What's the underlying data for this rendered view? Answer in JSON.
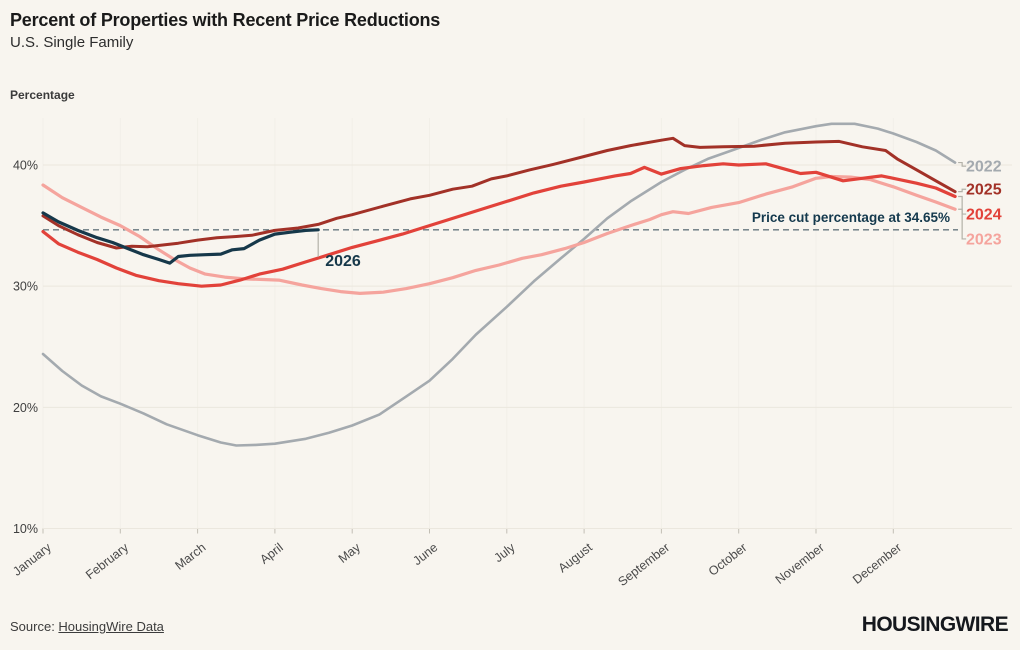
{
  "header": {
    "title": "Percent of Properties with Recent Price Reductions",
    "subtitle": "U.S. Single Family"
  },
  "axis_title": "Percentage",
  "source": {
    "prefix": "Source: ",
    "link_text": "HousingWire Data"
  },
  "logo_text": "HOUSINGWIRE",
  "chart_data": {
    "type": "line",
    "title": "Percent of Properties with Recent Price Reductions",
    "subtitle": "U.S. Single Family",
    "ylabel": "Percentage",
    "xlabel": "",
    "ylim": [
      10,
      44.5
    ],
    "grid": true,
    "legend_position": "right-edge-labels",
    "y_ticks": [
      10,
      20,
      30,
      40
    ],
    "y_tick_unit": "%",
    "x_axis": {
      "months": [
        "January",
        "February",
        "March",
        "April",
        "May",
        "June",
        "July",
        "August",
        "September",
        "October",
        "November",
        "December"
      ]
    },
    "annotation": {
      "text": "Price cut percentage at 34.65%",
      "value": 34.65,
      "color": "#14394d",
      "line_style": "dashed"
    },
    "inline_label": {
      "text": "2026",
      "x": 3.56,
      "value": 34.65
    },
    "colors": {
      "background": "#f8f5ef",
      "gridline": "#ebe7de",
      "gridline_vertical": "#f2efe8",
      "tick": "#c2beb4",
      "dashed_line": "#66777f",
      "connector": "#b3b1a8"
    },
    "series": [
      {
        "name": "2022",
        "color": "#a4aaaf",
        "width": 2.6,
        "label_value": 39.9,
        "points": [
          [
            0,
            24.4
          ],
          [
            0.25,
            23.0
          ],
          [
            0.5,
            21.8
          ],
          [
            0.75,
            20.9
          ],
          [
            1.0,
            20.3
          ],
          [
            1.3,
            19.5
          ],
          [
            1.6,
            18.6
          ],
          [
            2.0,
            17.7
          ],
          [
            2.3,
            17.1
          ],
          [
            2.5,
            16.85
          ],
          [
            2.75,
            16.9
          ],
          [
            3.0,
            17.0
          ],
          [
            3.4,
            17.4
          ],
          [
            3.7,
            17.9
          ],
          [
            4.0,
            18.5
          ],
          [
            4.35,
            19.4
          ],
          [
            4.7,
            20.9
          ],
          [
            5.0,
            22.2
          ],
          [
            5.3,
            24.0
          ],
          [
            5.6,
            26.0
          ],
          [
            6.0,
            28.3
          ],
          [
            6.35,
            30.4
          ],
          [
            6.7,
            32.3
          ],
          [
            7.0,
            33.9
          ],
          [
            7.3,
            35.6
          ],
          [
            7.6,
            37.0
          ],
          [
            8.0,
            38.6
          ],
          [
            8.3,
            39.6
          ],
          [
            8.6,
            40.5
          ],
          [
            9.0,
            41.4
          ],
          [
            9.3,
            42.1
          ],
          [
            9.6,
            42.7
          ],
          [
            10.0,
            43.2
          ],
          [
            10.2,
            43.4
          ],
          [
            10.5,
            43.4
          ],
          [
            10.8,
            43.0
          ],
          [
            11.0,
            42.6
          ],
          [
            11.3,
            41.9
          ],
          [
            11.55,
            41.2
          ],
          [
            11.8,
            40.2
          ]
        ]
      },
      {
        "name": "2023",
        "color": "#f5a49d",
        "width": 3.2,
        "label_value": 33.9,
        "points": [
          [
            0,
            38.35
          ],
          [
            0.25,
            37.3
          ],
          [
            0.5,
            36.5
          ],
          [
            0.75,
            35.7
          ],
          [
            1.0,
            35.0
          ],
          [
            1.25,
            34.1
          ],
          [
            1.5,
            33.0
          ],
          [
            1.7,
            32.2
          ],
          [
            1.9,
            31.5
          ],
          [
            2.1,
            31.0
          ],
          [
            2.35,
            30.75
          ],
          [
            2.6,
            30.6
          ],
          [
            2.85,
            30.55
          ],
          [
            3.05,
            30.5
          ],
          [
            3.35,
            30.1
          ],
          [
            3.6,
            29.8
          ],
          [
            3.85,
            29.55
          ],
          [
            4.1,
            29.4
          ],
          [
            4.4,
            29.5
          ],
          [
            4.7,
            29.8
          ],
          [
            5.0,
            30.2
          ],
          [
            5.3,
            30.7
          ],
          [
            5.6,
            31.3
          ],
          [
            5.9,
            31.75
          ],
          [
            6.2,
            32.3
          ],
          [
            6.45,
            32.6
          ],
          [
            6.75,
            33.1
          ],
          [
            7.0,
            33.6
          ],
          [
            7.3,
            34.35
          ],
          [
            7.6,
            35.0
          ],
          [
            7.85,
            35.5
          ],
          [
            8.0,
            35.9
          ],
          [
            8.15,
            36.15
          ],
          [
            8.35,
            36.0
          ],
          [
            8.65,
            36.5
          ],
          [
            9.0,
            36.9
          ],
          [
            9.35,
            37.6
          ],
          [
            9.7,
            38.2
          ],
          [
            10.0,
            38.9
          ],
          [
            10.2,
            39.05
          ],
          [
            10.45,
            39.0
          ],
          [
            10.7,
            38.8
          ],
          [
            11.0,
            38.2
          ],
          [
            11.3,
            37.5
          ],
          [
            11.55,
            36.95
          ],
          [
            11.8,
            36.35
          ]
        ]
      },
      {
        "name": "2024",
        "color": "#e2423a",
        "width": 3.2,
        "label_value": 35.95,
        "points": [
          [
            0,
            34.5
          ],
          [
            0.2,
            33.5
          ],
          [
            0.45,
            32.8
          ],
          [
            0.7,
            32.2
          ],
          [
            0.95,
            31.5
          ],
          [
            1.2,
            30.9
          ],
          [
            1.5,
            30.45
          ],
          [
            1.75,
            30.2
          ],
          [
            2.05,
            30.0
          ],
          [
            2.3,
            30.1
          ],
          [
            2.55,
            30.5
          ],
          [
            2.8,
            31.0
          ],
          [
            3.1,
            31.4
          ],
          [
            3.4,
            32.0
          ],
          [
            3.7,
            32.6
          ],
          [
            4.0,
            33.2
          ],
          [
            4.3,
            33.7
          ],
          [
            4.65,
            34.3
          ],
          [
            5.0,
            35.0
          ],
          [
            5.35,
            35.7
          ],
          [
            5.7,
            36.4
          ],
          [
            6.0,
            37.0
          ],
          [
            6.35,
            37.7
          ],
          [
            6.7,
            38.25
          ],
          [
            7.0,
            38.6
          ],
          [
            7.4,
            39.1
          ],
          [
            7.6,
            39.3
          ],
          [
            7.78,
            39.8
          ],
          [
            8.0,
            39.25
          ],
          [
            8.25,
            39.7
          ],
          [
            8.55,
            39.95
          ],
          [
            8.8,
            40.1
          ],
          [
            9.0,
            40.0
          ],
          [
            9.35,
            40.1
          ],
          [
            9.63,
            39.6
          ],
          [
            9.8,
            39.3
          ],
          [
            10.0,
            39.4
          ],
          [
            10.35,
            38.7
          ],
          [
            10.6,
            38.9
          ],
          [
            10.85,
            39.1
          ],
          [
            11.0,
            38.9
          ],
          [
            11.3,
            38.5
          ],
          [
            11.55,
            38.1
          ],
          [
            11.8,
            37.4
          ]
        ]
      },
      {
        "name": "2025",
        "color": "#a23127",
        "width": 3.0,
        "label_value": 38.0,
        "points": [
          [
            0,
            35.8
          ],
          [
            0.2,
            35.0
          ],
          [
            0.45,
            34.25
          ],
          [
            0.7,
            33.6
          ],
          [
            0.95,
            33.15
          ],
          [
            1.15,
            33.3
          ],
          [
            1.35,
            33.25
          ],
          [
            1.55,
            33.4
          ],
          [
            1.75,
            33.55
          ],
          [
            2.0,
            33.8
          ],
          [
            2.25,
            34.0
          ],
          [
            2.5,
            34.1
          ],
          [
            2.7,
            34.2
          ],
          [
            3.0,
            34.6
          ],
          [
            3.3,
            34.8
          ],
          [
            3.56,
            35.1
          ],
          [
            3.8,
            35.6
          ],
          [
            4.0,
            35.9
          ],
          [
            4.4,
            36.6
          ],
          [
            4.75,
            37.2
          ],
          [
            5.0,
            37.5
          ],
          [
            5.3,
            38.0
          ],
          [
            5.55,
            38.25
          ],
          [
            5.8,
            38.85
          ],
          [
            6.0,
            39.1
          ],
          [
            6.3,
            39.6
          ],
          [
            6.6,
            40.05
          ],
          [
            7.0,
            40.7
          ],
          [
            7.3,
            41.2
          ],
          [
            7.6,
            41.6
          ],
          [
            8.0,
            42.05
          ],
          [
            8.15,
            42.2
          ],
          [
            8.3,
            41.6
          ],
          [
            8.5,
            41.45
          ],
          [
            8.8,
            41.5
          ],
          [
            9.2,
            41.55
          ],
          [
            9.6,
            41.8
          ],
          [
            10.0,
            41.9
          ],
          [
            10.3,
            41.95
          ],
          [
            10.6,
            41.5
          ],
          [
            10.9,
            41.2
          ],
          [
            11.05,
            40.5
          ],
          [
            11.3,
            39.6
          ],
          [
            11.55,
            38.7
          ],
          [
            11.8,
            37.8
          ]
        ]
      },
      {
        "name": "2026",
        "color": "#16384a",
        "width": 3.2,
        "label_value": null,
        "points": [
          [
            0,
            36.05
          ],
          [
            0.2,
            35.3
          ],
          [
            0.45,
            34.6
          ],
          [
            0.7,
            34.0
          ],
          [
            0.9,
            33.6
          ],
          [
            1.1,
            33.1
          ],
          [
            1.3,
            32.6
          ],
          [
            1.5,
            32.2
          ],
          [
            1.64,
            31.9
          ],
          [
            1.75,
            32.45
          ],
          [
            1.9,
            32.55
          ],
          [
            2.1,
            32.6
          ],
          [
            2.3,
            32.65
          ],
          [
            2.45,
            33.0
          ],
          [
            2.6,
            33.1
          ],
          [
            2.8,
            33.8
          ],
          [
            3.0,
            34.3
          ],
          [
            3.2,
            34.45
          ],
          [
            3.4,
            34.6
          ],
          [
            3.56,
            34.65
          ]
        ]
      }
    ]
  }
}
